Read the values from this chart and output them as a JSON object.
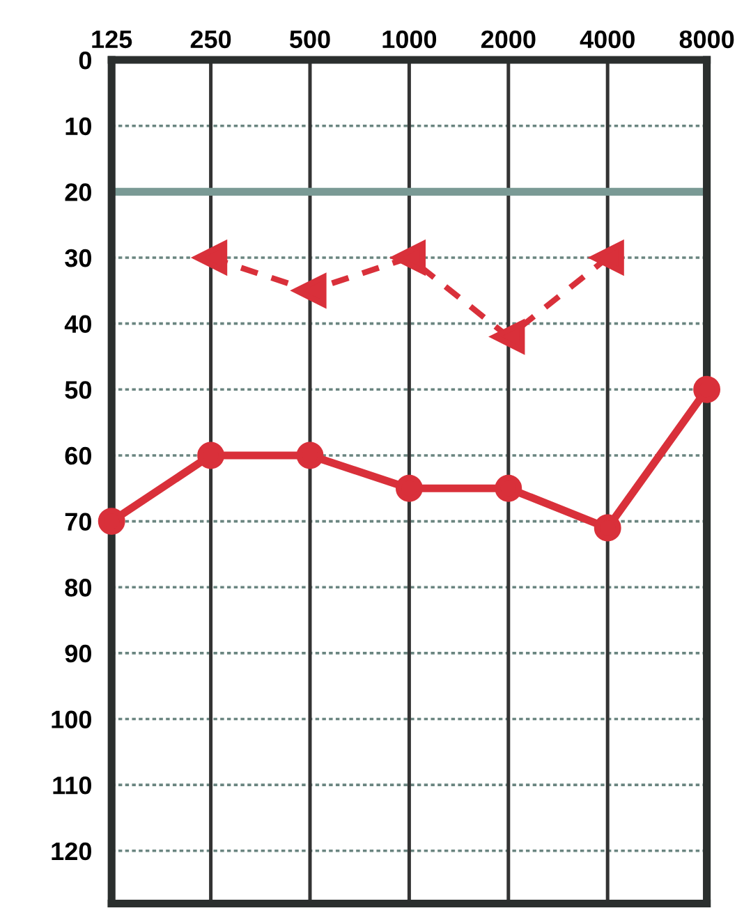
{
  "chart_data": {
    "type": "line",
    "categories": [
      "125",
      "250",
      "500",
      "1000",
      "2000",
      "4000",
      "8000"
    ],
    "series": [
      {
        "color": "#d9303a",
        "values": [
          70,
          60,
          60,
          65,
          65,
          71,
          50
        ],
        "marker": "circle",
        "line_style": "solid"
      },
      {
        "color": "#d9303a",
        "values": [
          null,
          30,
          35,
          30,
          42,
          30,
          null
        ],
        "marker": "triangle",
        "line_style": "dashed"
      }
    ],
    "ylim": [
      128,
      0
    ],
    "yticks": [
      0,
      10,
      20,
      30,
      40,
      50,
      60,
      70,
      80,
      90,
      100,
      110,
      120
    ],
    "grid": true,
    "ref_lines": [
      {
        "axis": "y",
        "value": 20,
        "color": "#7a9a95"
      }
    ]
  }
}
